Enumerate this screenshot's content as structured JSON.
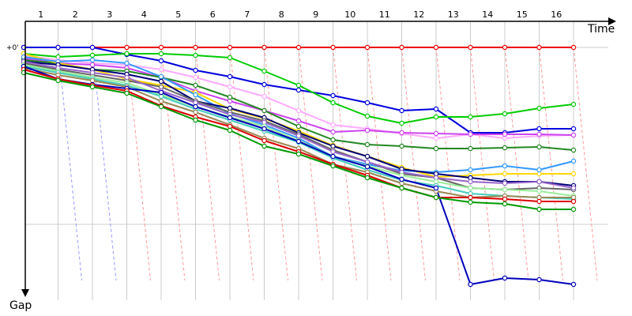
{
  "chart_data": {
    "type": "line",
    "xlabel": "Time",
    "ylabel": "Gap",
    "origin_label": "+0'",
    "x_ticks": [
      "1",
      "2",
      "3",
      "4",
      "5",
      "6",
      "7",
      "8",
      "9",
      "10",
      "11",
      "12",
      "13",
      "14",
      "15",
      "16"
    ],
    "grid": true,
    "ylim": [
      0,
      330
    ],
    "series": [
      {
        "color": "#ee0000",
        "values": [
          0,
          0,
          0,
          0,
          0,
          0,
          0,
          0,
          0,
          0,
          0,
          0,
          0,
          0,
          0,
          0,
          0
        ]
      },
      {
        "color": "#0000dd",
        "values": [
          0,
          0,
          0,
          9,
          17,
          29,
          37,
          47,
          54,
          61,
          70,
          80,
          78,
          108,
          108,
          103,
          103
        ]
      },
      {
        "color": "#00cc00",
        "values": [
          8,
          12,
          10,
          8,
          8,
          10,
          13,
          30,
          48,
          70,
          87,
          96,
          88,
          88,
          84,
          77,
          72
        ]
      },
      {
        "color": "#ffaaff",
        "values": [
          10,
          16,
          20,
          22,
          28,
          38,
          50,
          62,
          80,
          98,
          103,
          109,
          115,
          110,
          115,
          112,
          111
        ]
      },
      {
        "color": "#cc44ee",
        "values": [
          14,
          20,
          22,
          26,
          38,
          55,
          68,
          80,
          93,
          107,
          105,
          108,
          109,
          110,
          110,
          110,
          111
        ]
      },
      {
        "color": "#228822",
        "values": [
          16,
          20,
          28,
          30,
          38,
          48,
          63,
          80,
          100,
          117,
          123,
          125,
          128,
          128,
          127,
          126,
          130
        ]
      },
      {
        "color": "#ffd700",
        "values": [
          8,
          20,
          28,
          40,
          48,
          57,
          78,
          90,
          106,
          124,
          138,
          152,
          164,
          162,
          160,
          160,
          160
        ]
      },
      {
        "color": "#3399ff",
        "values": [
          12,
          18,
          16,
          20,
          37,
          60,
          84,
          98,
          115,
          138,
          148,
          156,
          158,
          155,
          150,
          155,
          144
        ]
      },
      {
        "color": "#000077",
        "values": [
          18,
          22,
          28,
          34,
          43,
          68,
          77,
          89,
          108,
          125,
          138,
          154,
          160,
          165,
          170,
          170,
          175
        ]
      },
      {
        "color": "#666666",
        "values": [
          20,
          28,
          35,
          42,
          50,
          68,
          82,
          93,
          110,
          130,
          145,
          160,
          165,
          178,
          180,
          178,
          180
        ]
      },
      {
        "color": "#9966cc",
        "values": [
          18,
          26,
          32,
          38,
          55,
          70,
          85,
          95,
          112,
          132,
          145,
          158,
          165,
          170,
          172,
          170,
          178
        ]
      },
      {
        "color": "#99ee99",
        "values": [
          22,
          30,
          38,
          45,
          60,
          75,
          88,
          100,
          118,
          138,
          150,
          162,
          170,
          178,
          180,
          182,
          188
        ]
      },
      {
        "color": "#44ccbb",
        "values": [
          24,
          32,
          40,
          48,
          62,
          78,
          92,
          106,
          120,
          140,
          155,
          168,
          175,
          185,
          188,
          190,
          192
        ]
      },
      {
        "color": "#998855",
        "values": [
          26,
          35,
          42,
          50,
          68,
          82,
          98,
          115,
          128,
          148,
          158,
          172,
          182,
          190,
          188,
          190,
          190
        ]
      },
      {
        "color": "#0000bb",
        "values": [
          24,
          40,
          47,
          52,
          57,
          75,
          89,
          103,
          119,
          138,
          151,
          167,
          178,
          300,
          292,
          294,
          300
        ]
      },
      {
        "color": "#dd0000",
        "values": [
          28,
          40,
          48,
          55,
          74,
          88,
          100,
          118,
          132,
          148,
          162,
          178,
          190,
          190,
          192,
          195,
          195
        ]
      },
      {
        "color": "#009900",
        "values": [
          32,
          42,
          50,
          58,
          75,
          92,
          105,
          125,
          135,
          150,
          165,
          178,
          190,
          196,
          198,
          205,
          205
        ]
      }
    ]
  }
}
